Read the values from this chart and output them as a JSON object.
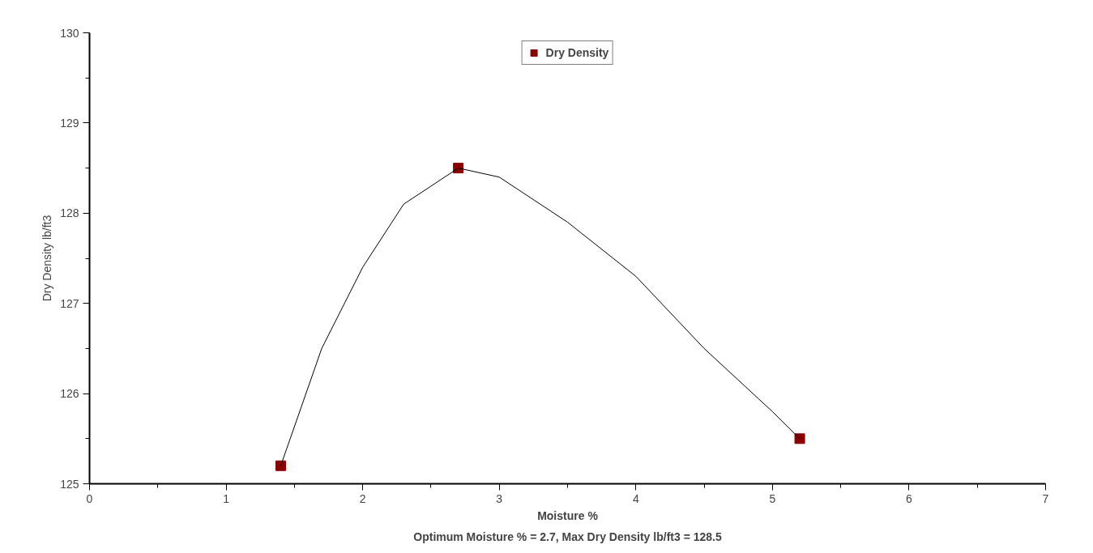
{
  "chart_data": {
    "type": "scatter",
    "xlabel": "Moisture %",
    "ylabel": "Dry Density lb/ft3",
    "annotations": [
      "Optimum Moisture % = 2.7, Max Dry Density lb/ft3 = 128.5"
    ],
    "series": [
      {
        "name": "Dry Density",
        "color": "#8b0000",
        "marker": "square",
        "x": [
          1.4,
          2.7,
          5.2
        ],
        "values": [
          125.2,
          128.5,
          125.5
        ]
      },
      {
        "type": "line",
        "color": "#000000",
        "line_style": "solid",
        "x": [
          1.4,
          1.7,
          2.0,
          2.3,
          2.7,
          3.0,
          3.5,
          4.0,
          4.5,
          5.0,
          5.2
        ],
        "values": [
          125.2,
          126.5,
          127.4,
          128.1,
          128.5,
          128.4,
          127.9,
          127.3,
          126.5,
          125.8,
          125.5
        ]
      }
    ],
    "xlim": [
      0,
      7
    ],
    "ylim": [
      125,
      130
    ],
    "xticks": [
      0,
      1,
      2,
      3,
      4,
      5,
      6,
      7
    ],
    "yticks": [
      125,
      126,
      127,
      128,
      129,
      130
    ],
    "grid": false,
    "legend": "top"
  }
}
